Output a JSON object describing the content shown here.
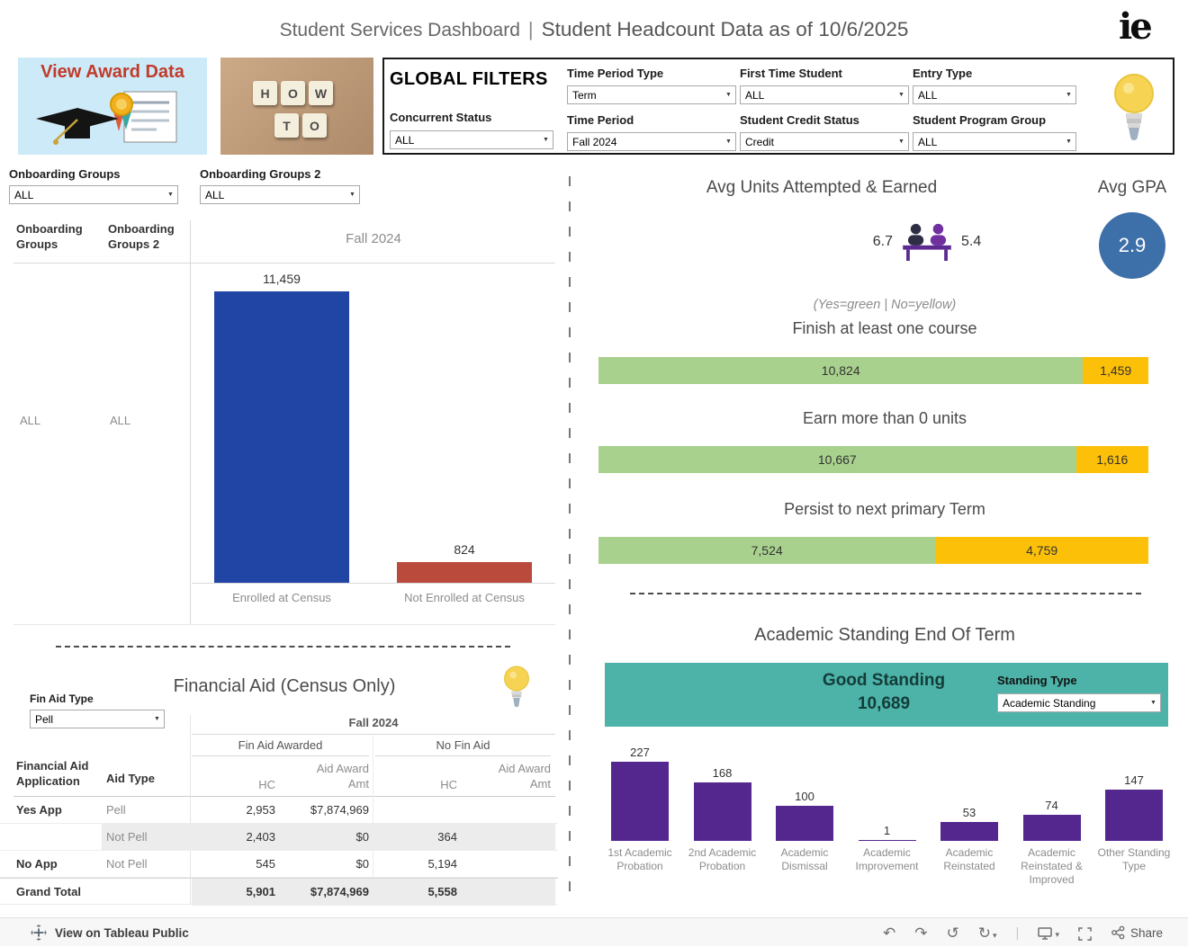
{
  "header": {
    "title_left": "Student Services Dashboard",
    "divider": "|",
    "title_right": "Student Headcount Data as of 10/6/2025",
    "logo_text": "ie"
  },
  "award_card": {
    "label": "View Award Data"
  },
  "howto_card": {
    "tiles": [
      "H",
      "O",
      "W",
      "T",
      "O"
    ]
  },
  "global_filters": {
    "title": "GLOBAL FILTERS",
    "fields": [
      {
        "label": "Time Period Type",
        "value": "Term"
      },
      {
        "label": "First Time Student",
        "value": "ALL"
      },
      {
        "label": "Entry Type",
        "value": "ALL"
      },
      {
        "label": "Concurrent Status",
        "value": "ALL"
      },
      {
        "label": "Time Period",
        "value": "Fall 2024"
      },
      {
        "label": "Student Credit Status",
        "value": "Credit"
      },
      {
        "label": "Student Program Group",
        "value": "ALL"
      }
    ]
  },
  "onboarding": {
    "filter1_label": "Onboarding Groups",
    "filter1_value": "ALL",
    "filter2_label": "Onboarding Groups 2",
    "filter2_value": "ALL",
    "col1_header": "Onboarding Groups",
    "col2_header": "Onboarding Groups 2",
    "period_header": "Fall 2024",
    "row_label1": "ALL",
    "row_label2": "ALL"
  },
  "financial_aid": {
    "section_title": "Financial Aid (Census Only)",
    "filter_label": "Fin Aid Type",
    "filter_value": "Pell",
    "period_header": "Fall 2024",
    "group1_header": "Fin Aid Awarded",
    "group2_header": "No Fin Aid",
    "hc_header": "HC",
    "amt_header": "Aid Award Amt",
    "row_dim1_header": "Financial Aid Application",
    "row_dim2_header": "Aid Type",
    "rows": [
      {
        "app": "Yes App",
        "aid_type": "Pell",
        "hc": "2,953",
        "amt": "$7,874,969",
        "no_hc": "",
        "no_amt": ""
      },
      {
        "app": "",
        "aid_type": "Not Pell",
        "hc": "2,403",
        "amt": "$0",
        "no_hc": "364",
        "no_amt": ""
      },
      {
        "app": "No App",
        "aid_type": "Not Pell",
        "hc": "545",
        "amt": "$0",
        "no_hc": "5,194",
        "no_amt": ""
      },
      {
        "app": "Grand Total",
        "aid_type": "",
        "hc": "5,901",
        "amt": "$7,874,969",
        "no_hc": "5,558",
        "no_amt": ""
      }
    ]
  },
  "avg_units": {
    "title": "Avg Units Attempted & Earned",
    "attempted": "6.7",
    "earned": "5.4"
  },
  "avg_gpa": {
    "title": "Avg GPA",
    "value": "2.9"
  },
  "outcomes": {
    "legend_note": "(Yes=green | No=yellow)"
  },
  "academic_standing": {
    "section_title": "Academic Standing End Of Term",
    "good_standing_label": "Good Standing",
    "good_standing_value": "10,689",
    "standing_type_label": "Standing Type",
    "standing_type_value": "Academic Standing"
  },
  "toolbar": {
    "view_label": "View on Tableau Public",
    "share_label": "Share"
  },
  "colors": {
    "enrolled_blue": "#2145a5",
    "not_enrolled_red": "#b94a3c",
    "yes_green": "#a9d18e",
    "no_yellow": "#fdc008",
    "teal_panel": "#4db3a9",
    "standing_purple": "#54278f",
    "gpa_circle_blue": "#3d6fa8"
  },
  "chart_data": [
    {
      "id": "enrollment-by-census",
      "type": "bar",
      "title": "Fall 2024",
      "categories": [
        "Enrolled at Census",
        "Not Enrolled at Census"
      ],
      "values": [
        11459,
        824
      ],
      "labels": [
        "11,459",
        "824"
      ],
      "colors": [
        "#2145a5",
        "#b94a3c"
      ],
      "ylim": [
        0,
        12000
      ],
      "legend_position": "none",
      "grid": false
    },
    {
      "id": "outcome-indicators",
      "type": "stacked-bar",
      "note": "(Yes=green | No=yellow)",
      "categories": [
        "Finish at least one course",
        "Earn more than 0 units",
        "Persist to next primary Term"
      ],
      "series": [
        {
          "name": "Yes",
          "color": "#a9d18e",
          "values": [
            10824,
            10667,
            7524
          ],
          "labels": [
            "10,824",
            "10,667",
            "7,524"
          ]
        },
        {
          "name": "No",
          "color": "#fdc008",
          "values": [
            1459,
            1616,
            4759
          ],
          "labels": [
            "1,459",
            "1,616",
            "4,759"
          ]
        }
      ],
      "total": 12283,
      "grid": false
    },
    {
      "id": "academic-standing-end-of-term",
      "type": "bar",
      "title": "Academic Standing End Of Term",
      "good_standing_value": 10689,
      "categories": [
        "1st Academic Probation",
        "2nd Academic Probation",
        "Academic Dismissal",
        "Academic Improvement",
        "Academic Reinstated",
        "Academic Reinstated & Improved",
        "Other Standing Type"
      ],
      "values": [
        227,
        168,
        100,
        1,
        53,
        74,
        147
      ],
      "labels": [
        "227",
        "168",
        "100",
        "1",
        "53",
        "74",
        "147"
      ],
      "color": "#54278f",
      "ylim": [
        0,
        240
      ],
      "grid": false
    }
  ]
}
